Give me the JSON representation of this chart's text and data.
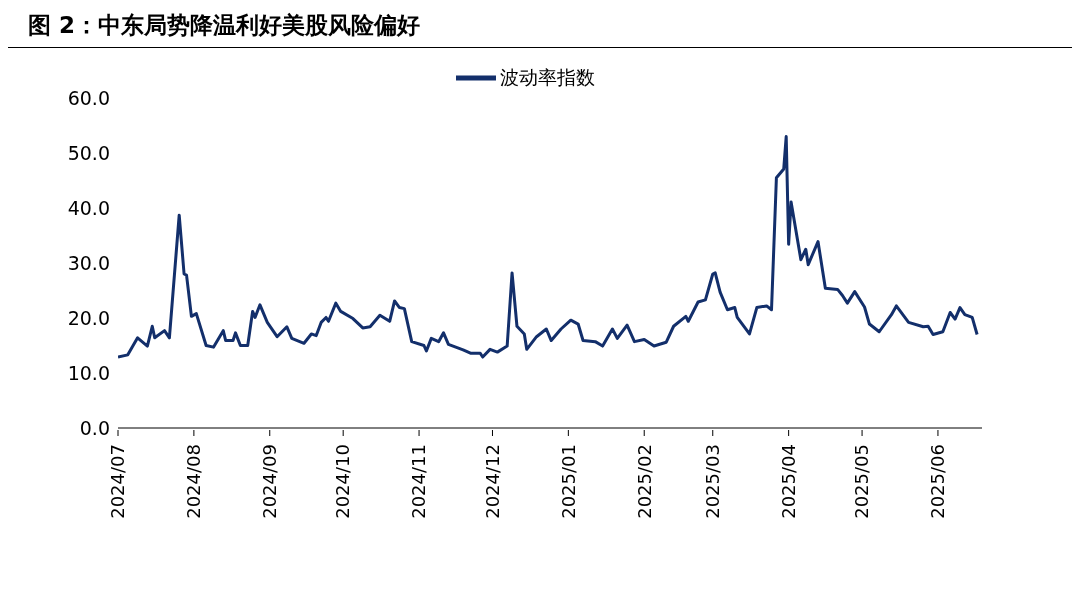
{
  "chart_data": {
    "type": "line",
    "title": "图 2：中东局势降温利好美股风险偏好",
    "x": [
      "2024-07-01",
      "2024-07-05",
      "2024-07-09",
      "2024-07-13",
      "2024-07-15",
      "2024-07-16",
      "2024-07-20",
      "2024-07-22",
      "2024-07-26",
      "2024-07-28",
      "2024-07-29",
      "2024-07-31",
      "2024-08-02",
      "2024-08-06",
      "2024-08-09",
      "2024-08-13",
      "2024-08-14",
      "2024-08-17",
      "2024-08-18",
      "2024-08-20",
      "2024-08-23",
      "2024-08-25",
      "2024-08-26",
      "2024-08-28",
      "2024-08-31",
      "2024-09-04",
      "2024-09-08",
      "2024-09-10",
      "2024-09-15",
      "2024-09-18",
      "2024-09-20",
      "2024-09-22",
      "2024-09-24",
      "2024-09-25",
      "2024-09-28",
      "2024-09-30",
      "2024-10-05",
      "2024-10-09",
      "2024-10-12",
      "2024-10-16",
      "2024-10-20",
      "2024-10-22",
      "2024-10-24",
      "2024-10-26",
      "2024-10-29",
      "2024-11-03",
      "2024-11-04",
      "2024-11-06",
      "2024-11-09",
      "2024-11-11",
      "2024-11-13",
      "2024-11-19",
      "2024-11-22",
      "2024-11-26",
      "2024-11-27",
      "2024-11-30",
      "2024-12-03",
      "2024-12-07",
      "2024-12-09",
      "2024-12-11",
      "2024-12-14",
      "2024-12-15",
      "2024-12-19",
      "2024-12-23",
      "2024-12-25",
      "2024-12-29",
      "2025-01-02",
      "2025-01-05",
      "2025-01-07",
      "2025-01-12",
      "2025-01-15",
      "2025-01-19",
      "2025-01-21",
      "2025-01-25",
      "2025-01-28",
      "2025-02-01",
      "2025-02-05",
      "2025-02-10",
      "2025-02-13",
      "2025-02-18",
      "2025-02-19",
      "2025-02-23",
      "2025-02-26",
      "2025-03-01",
      "2025-03-02",
      "2025-03-04",
      "2025-03-07",
      "2025-03-10",
      "2025-03-11",
      "2025-03-16",
      "2025-03-19",
      "2025-03-23",
      "2025-03-25",
      "2025-03-27",
      "2025-03-30",
      "2025-03-31",
      "2025-04-01",
      "2025-04-02",
      "2025-04-06",
      "2025-04-08",
      "2025-04-09",
      "2025-04-13",
      "2025-04-16",
      "2025-04-21",
      "2025-04-23",
      "2025-04-25",
      "2025-04-28",
      "2025-05-02",
      "2025-05-04",
      "2025-05-08",
      "2025-05-13",
      "2025-05-15",
      "2025-05-20",
      "2025-05-26",
      "2025-05-28",
      "2025-05-30",
      "2025-06-03",
      "2025-06-06",
      "2025-06-08",
      "2025-06-10",
      "2025-06-12",
      "2025-06-15",
      "2025-06-17"
    ],
    "series": [
      {
        "name": "波动率指数",
        "color": "#132f6b",
        "values": [
          12.9,
          13.3,
          16.4,
          14.9,
          18.5,
          16.4,
          17.7,
          16.4,
          38.7,
          28.0,
          27.8,
          20.3,
          20.8,
          15.0,
          14.7,
          17.7,
          15.9,
          15.9,
          17.3,
          15.0,
          15.0,
          21.2,
          20.1,
          22.4,
          19.2,
          16.6,
          18.4,
          16.3,
          15.4,
          17.1,
          16.8,
          19.2,
          20.1,
          19.4,
          22.7,
          21.2,
          19.9,
          18.2,
          18.4,
          20.5,
          19.4,
          23.1,
          21.9,
          21.7,
          15.7,
          15.0,
          14.0,
          16.3,
          15.7,
          17.3,
          15.2,
          14.2,
          13.6,
          13.6,
          12.9,
          14.3,
          13.8,
          14.9,
          28.2,
          18.5,
          17.1,
          14.3,
          16.6,
          18.0,
          15.9,
          18.0,
          19.6,
          18.9,
          15.9,
          15.7,
          14.9,
          18.0,
          16.3,
          18.7,
          15.7,
          16.1,
          14.9,
          15.6,
          18.5,
          20.3,
          19.4,
          22.9,
          23.3,
          28.0,
          28.2,
          24.7,
          21.5,
          21.9,
          20.1,
          17.1,
          21.9,
          22.2,
          21.5,
          45.5,
          47.1,
          53.0,
          33.4,
          41.1,
          30.6,
          32.5,
          29.7,
          33.9,
          25.4,
          25.2,
          24.1,
          22.7,
          24.8,
          22.0,
          18.9,
          17.5,
          20.6,
          22.2,
          19.2,
          18.4,
          18.5,
          17.0,
          17.5,
          21.0,
          19.8,
          21.9,
          20.6,
          20.1,
          17.0
        ]
      }
    ],
    "xlim": [
      "2024-07-01",
      "2025-06-19"
    ],
    "xticks": [
      {
        "value": "2024-07-01",
        "label": "2024/07"
      },
      {
        "value": "2024-08-01",
        "label": "2024/08"
      },
      {
        "value": "2024-09-01",
        "label": "2024/09"
      },
      {
        "value": "2024-10-01",
        "label": "2024/10"
      },
      {
        "value": "2024-11-01",
        "label": "2024/11"
      },
      {
        "value": "2024-12-01",
        "label": "2024/12"
      },
      {
        "value": "2025-01-01",
        "label": "2025/01"
      },
      {
        "value": "2025-02-01",
        "label": "2025/02"
      },
      {
        "value": "2025-03-01",
        "label": "2025/03"
      },
      {
        "value": "2025-04-01",
        "label": "2025/04"
      },
      {
        "value": "2025-05-01",
        "label": "2025/05"
      },
      {
        "value": "2025-06-01",
        "label": "2025/06"
      }
    ],
    "ylim": [
      0,
      60
    ],
    "yticks": [
      {
        "value": 0,
        "label": "0.0"
      },
      {
        "value": 10,
        "label": "10.0"
      },
      {
        "value": 20,
        "label": "20.0"
      },
      {
        "value": 30,
        "label": "30.0"
      },
      {
        "value": 40,
        "label": "40.0"
      },
      {
        "value": 50,
        "label": "50.0"
      },
      {
        "value": 60,
        "label": "60.0"
      }
    ],
    "legend": "top",
    "grid": false,
    "marker": "none",
    "line_style": "solid"
  }
}
